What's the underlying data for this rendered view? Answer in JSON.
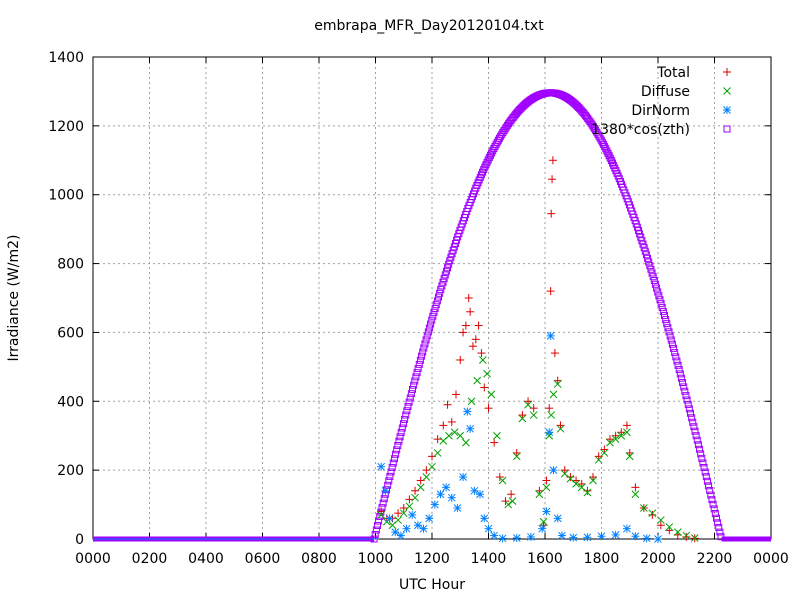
{
  "chart_data": {
    "type": "scatter",
    "title": "embrapa_MFR_Day20120104.txt",
    "xlabel": "UTC Hour",
    "ylabel": "Irradiance (W/m2)",
    "xlim": [
      0,
      24
    ],
    "ylim": [
      0,
      1400
    ],
    "grid": true,
    "legend_position": "top-right",
    "x_ticks": [
      "0000",
      "0200",
      "0400",
      "0600",
      "0800",
      "1000",
      "1200",
      "1400",
      "1600",
      "1800",
      "2000",
      "2200",
      "0000"
    ],
    "y_ticks": [
      0,
      200,
      400,
      600,
      800,
      1000,
      1200,
      1400
    ],
    "series": [
      {
        "name": "Total",
        "marker": "plus",
        "color": "#dd0000",
        "points": [
          [
            10.2,
            80
          ],
          [
            10.4,
            60
          ],
          [
            10.6,
            60
          ],
          [
            10.8,
            75
          ],
          [
            11.0,
            90
          ],
          [
            11.2,
            115
          ],
          [
            11.4,
            140
          ],
          [
            11.6,
            170
          ],
          [
            11.8,
            200
          ],
          [
            12.0,
            240
          ],
          [
            12.2,
            290
          ],
          [
            12.4,
            330
          ],
          [
            12.55,
            390
          ],
          [
            12.7,
            340
          ],
          [
            12.85,
            420
          ],
          [
            13.0,
            520
          ],
          [
            13.1,
            600
          ],
          [
            13.2,
            620
          ],
          [
            13.3,
            700
          ],
          [
            13.35,
            660
          ],
          [
            13.45,
            560
          ],
          [
            13.55,
            580
          ],
          [
            13.65,
            620
          ],
          [
            13.75,
            540
          ],
          [
            13.85,
            440
          ],
          [
            14.0,
            380
          ],
          [
            14.2,
            280
          ],
          [
            14.4,
            180
          ],
          [
            14.6,
            110
          ],
          [
            14.8,
            130
          ],
          [
            15.0,
            250
          ],
          [
            15.2,
            360
          ],
          [
            15.4,
            400
          ],
          [
            15.6,
            380
          ],
          [
            15.8,
            140
          ],
          [
            15.95,
            40
          ],
          [
            16.05,
            170
          ],
          [
            16.15,
            380
          ],
          [
            16.2,
            720
          ],
          [
            16.22,
            945
          ],
          [
            16.25,
            1045
          ],
          [
            16.28,
            1100
          ],
          [
            16.35,
            540
          ],
          [
            16.45,
            460
          ],
          [
            16.55,
            330
          ],
          [
            16.7,
            200
          ],
          [
            16.9,
            180
          ],
          [
            17.1,
            170
          ],
          [
            17.3,
            160
          ],
          [
            17.5,
            140
          ],
          [
            17.7,
            180
          ],
          [
            17.9,
            240
          ],
          [
            18.1,
            260
          ],
          [
            18.3,
            290
          ],
          [
            18.5,
            300
          ],
          [
            18.7,
            310
          ],
          [
            18.9,
            330
          ],
          [
            19.0,
            250
          ],
          [
            19.2,
            150
          ],
          [
            19.5,
            90
          ],
          [
            19.8,
            70
          ],
          [
            20.1,
            40
          ],
          [
            20.4,
            25
          ],
          [
            20.7,
            12
          ],
          [
            21.0,
            6
          ],
          [
            21.3,
            2
          ]
        ]
      },
      {
        "name": "Diffuse",
        "marker": "cross",
        "color": "#00a000",
        "points": [
          [
            10.2,
            70
          ],
          [
            10.4,
            50
          ],
          [
            10.6,
            40
          ],
          [
            10.8,
            55
          ],
          [
            11.0,
            75
          ],
          [
            11.2,
            95
          ],
          [
            11.4,
            120
          ],
          [
            11.6,
            150
          ],
          [
            11.8,
            180
          ],
          [
            12.0,
            210
          ],
          [
            12.2,
            250
          ],
          [
            12.4,
            285
          ],
          [
            12.6,
            300
          ],
          [
            12.8,
            310
          ],
          [
            13.0,
            300
          ],
          [
            13.2,
            280
          ],
          [
            13.4,
            400
          ],
          [
            13.6,
            460
          ],
          [
            13.8,
            520
          ],
          [
            13.95,
            480
          ],
          [
            14.1,
            420
          ],
          [
            14.3,
            300
          ],
          [
            14.5,
            170
          ],
          [
            14.7,
            100
          ],
          [
            14.85,
            110
          ],
          [
            15.0,
            240
          ],
          [
            15.2,
            350
          ],
          [
            15.4,
            390
          ],
          [
            15.6,
            360
          ],
          [
            15.8,
            130
          ],
          [
            15.95,
            50
          ],
          [
            16.05,
            150
          ],
          [
            16.15,
            300
          ],
          [
            16.22,
            360
          ],
          [
            16.3,
            420
          ],
          [
            16.45,
            450
          ],
          [
            16.55,
            320
          ],
          [
            16.7,
            190
          ],
          [
            16.9,
            175
          ],
          [
            17.1,
            160
          ],
          [
            17.3,
            150
          ],
          [
            17.5,
            135
          ],
          [
            17.7,
            170
          ],
          [
            17.9,
            230
          ],
          [
            18.1,
            250
          ],
          [
            18.3,
            280
          ],
          [
            18.5,
            290
          ],
          [
            18.7,
            300
          ],
          [
            18.9,
            310
          ],
          [
            19.0,
            240
          ],
          [
            19.2,
            130
          ],
          [
            19.5,
            90
          ],
          [
            19.8,
            75
          ],
          [
            20.1,
            55
          ],
          [
            20.4,
            35
          ],
          [
            20.7,
            20
          ],
          [
            21.0,
            10
          ],
          [
            21.3,
            3
          ]
        ]
      },
      {
        "name": "DirNorm",
        "marker": "star",
        "color": "#0080ff",
        "points": [
          [
            10.2,
            210
          ],
          [
            10.35,
            140
          ],
          [
            10.5,
            60
          ],
          [
            10.7,
            20
          ],
          [
            10.9,
            10
          ],
          [
            11.1,
            30
          ],
          [
            11.3,
            70
          ],
          [
            11.5,
            40
          ],
          [
            11.7,
            30
          ],
          [
            11.9,
            60
          ],
          [
            12.1,
            100
          ],
          [
            12.3,
            130
          ],
          [
            12.5,
            150
          ],
          [
            12.7,
            120
          ],
          [
            12.9,
            90
          ],
          [
            13.1,
            180
          ],
          [
            13.25,
            370
          ],
          [
            13.35,
            320
          ],
          [
            13.5,
            140
          ],
          [
            13.7,
            130
          ],
          [
            13.85,
            60
          ],
          [
            14.0,
            30
          ],
          [
            14.2,
            10
          ],
          [
            14.5,
            2
          ],
          [
            15.0,
            3
          ],
          [
            15.5,
            6
          ],
          [
            15.9,
            30
          ],
          [
            16.05,
            80
          ],
          [
            16.15,
            310
          ],
          [
            16.2,
            590
          ],
          [
            16.3,
            200
          ],
          [
            16.45,
            60
          ],
          [
            16.6,
            10
          ],
          [
            17.0,
            4
          ],
          [
            17.5,
            5
          ],
          [
            18.0,
            8
          ],
          [
            18.5,
            12
          ],
          [
            18.9,
            30
          ],
          [
            19.2,
            8
          ],
          [
            19.6,
            2
          ],
          [
            20.0,
            0
          ]
        ]
      },
      {
        "name": "1380*cos(zth)",
        "marker": "square",
        "color": "#a000ff",
        "curve": {
          "peak_x": 16.2,
          "peak_y": 1296,
          "start_x": 9.95,
          "end_x": 22.25
        }
      }
    ]
  }
}
